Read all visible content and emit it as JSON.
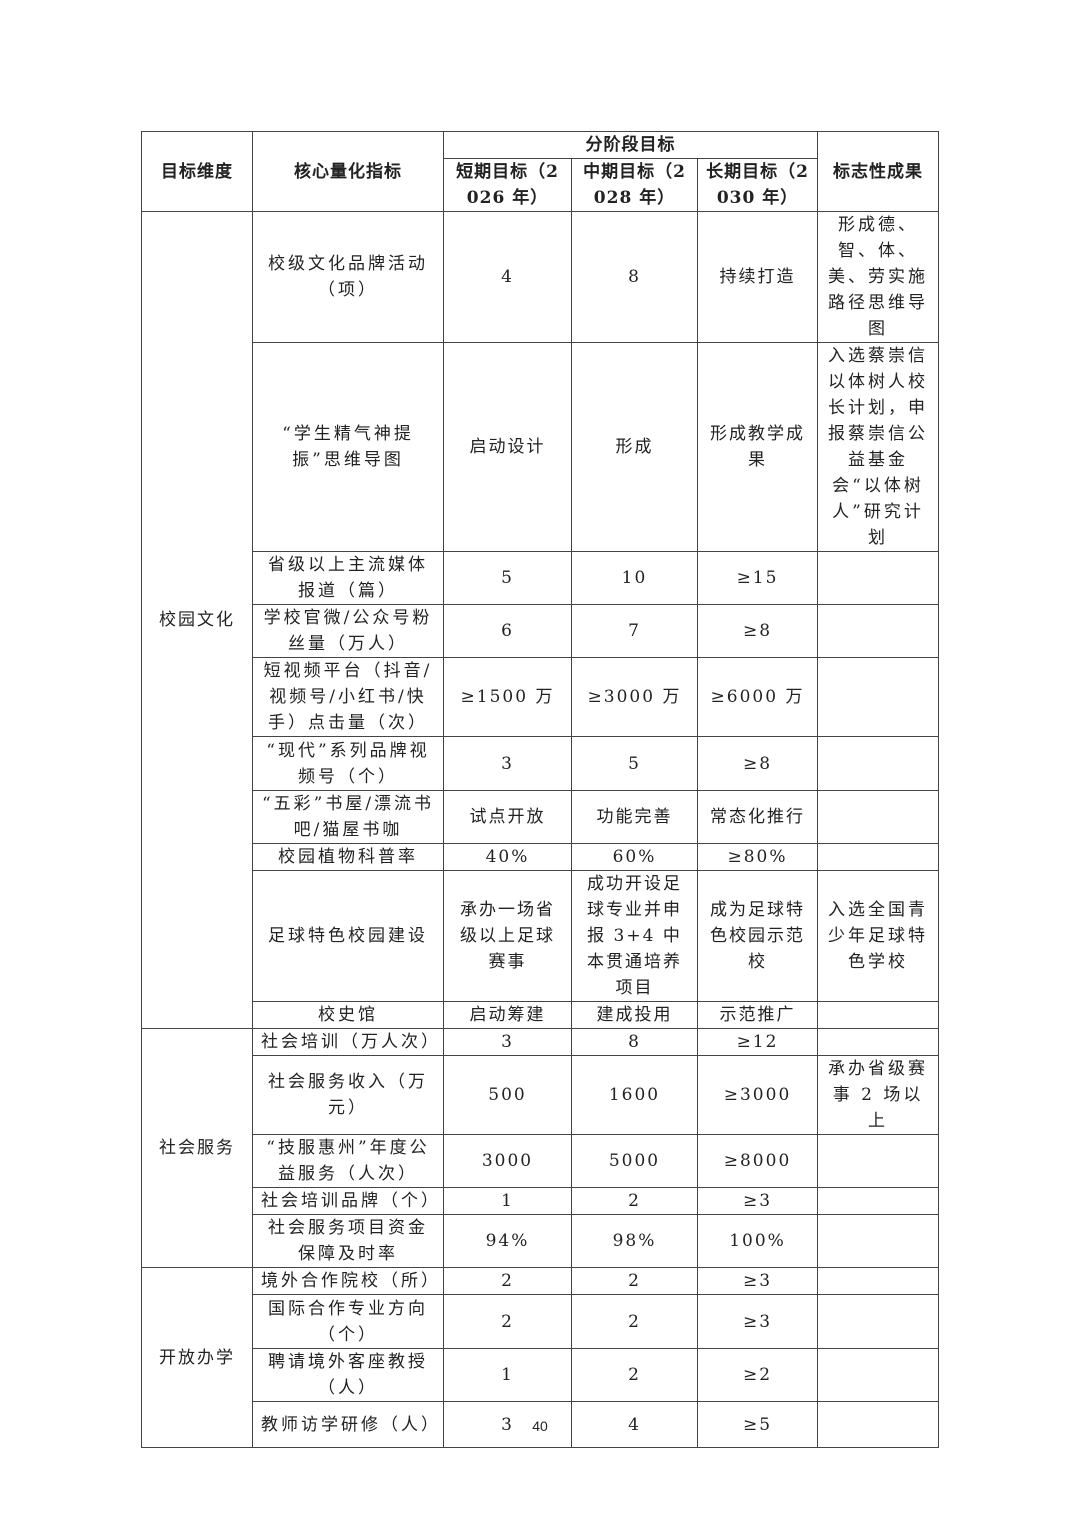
{
  "header": {
    "dimension": "目标维度",
    "indicator": "核心量化指标",
    "stage": "分阶段目标",
    "short": "短期目标（2026 年）",
    "mid": "中期目标（2028 年）",
    "long": "长期目标（2030 年）",
    "achievement": "标志性成果"
  },
  "groups": [
    {
      "name": "校园文化",
      "rows": [
        {
          "indicator": "校级文化品牌活动（项）",
          "short": "4",
          "mid": "8",
          "long": "持续打造",
          "achievement": "形成德、智、体、美、劳实施路径思维导图"
        },
        {
          "indicator": "“学生精气神提振”思维导图",
          "short": "启动设计",
          "mid": "形成",
          "long": "形成教学成果",
          "achievement": "入选蔡崇信以体树人校长计划，申报蔡崇信公益基金会“以体树人”研究计划"
        },
        {
          "indicator": "省级以上主流媒体报道（篇）",
          "short": "5",
          "mid": "10",
          "long": "≥15",
          "achievement": ""
        },
        {
          "indicator": "学校官微/公众号粉丝量（万人）",
          "short": "6",
          "mid": "7",
          "long": "≥8",
          "achievement": ""
        },
        {
          "indicator": "短视频平台（抖音/视频号/小红书/快手）点击量（次）",
          "short": "≥1500 万",
          "mid": "≥3000 万",
          "long": "≥6000 万",
          "achievement": ""
        },
        {
          "indicator": "“现代”系列品牌视频号（个）",
          "short": "3",
          "mid": "5",
          "long": "≥8",
          "achievement": ""
        },
        {
          "indicator": "“五彩”书屋/漂流书吧/猫屋书咖",
          "short": "试点开放",
          "mid": "功能完善",
          "long": "常态化推行",
          "achievement": ""
        },
        {
          "indicator": "校园植物科普率",
          "short": "40%",
          "mid": "60%",
          "long": "≥80%",
          "achievement": ""
        },
        {
          "indicator": "足球特色校园建设",
          "short": "承办一场省级以上足球赛事",
          "mid": "成功开设足球专业并申报 3+4 中本贯通培养项目",
          "long": "成为足球特色校园示范校",
          "achievement": "入选全国青少年足球特色学校"
        },
        {
          "indicator": "校史馆",
          "short": "启动筹建",
          "mid": "建成投用",
          "long": "示范推广",
          "achievement": ""
        }
      ]
    },
    {
      "name": "社会服务",
      "rows": [
        {
          "indicator": "社会培训（万人次）",
          "short": "3",
          "mid": "8",
          "long": "≥12",
          "achievement": ""
        },
        {
          "indicator": "社会服务收入（万元）",
          "short": "500",
          "mid": "1600",
          "long": "≥3000",
          "achievement": "承办省级赛事 2 场以上"
        },
        {
          "indicator": "“技服惠州”年度公益服务（人次）",
          "short": "3000",
          "mid": "5000",
          "long": "≥8000",
          "achievement": ""
        },
        {
          "indicator": "社会培训品牌（个）",
          "short": "1",
          "mid": "2",
          "long": "≥3",
          "achievement": ""
        },
        {
          "indicator": "社会服务项目资金保障及时率",
          "short": "94%",
          "mid": "98%",
          "long": "100%",
          "achievement": ""
        }
      ]
    },
    {
      "name": "开放办学",
      "rows": [
        {
          "indicator": "境外合作院校（所）",
          "short": "2",
          "mid": "2",
          "long": "≥3",
          "achievement": ""
        },
        {
          "indicator": "国际合作专业方向（个）",
          "short": "2",
          "mid": "2",
          "long": "≥3",
          "achievement": ""
        },
        {
          "indicator": "聘请境外客座教授（人）",
          "short": "1",
          "mid": "2",
          "long": "≥2",
          "achievement": ""
        },
        {
          "indicator": "教师访学研修（人）",
          "short": "3",
          "mid": "4",
          "long": "≥5",
          "achievement": ""
        }
      ]
    }
  ],
  "page_number": "40"
}
